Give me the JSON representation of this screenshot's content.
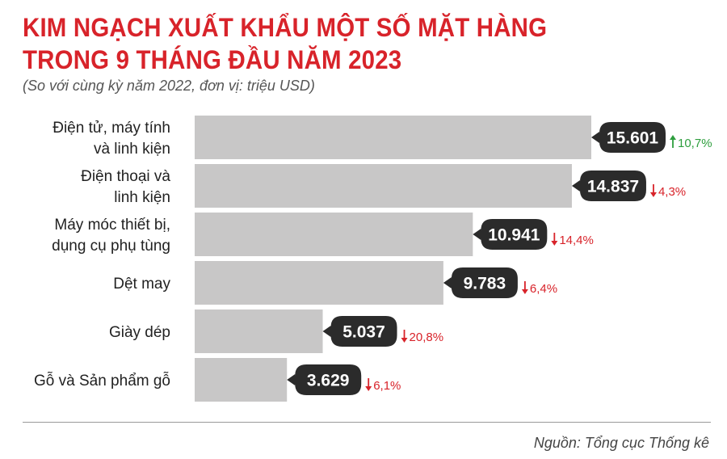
{
  "header": {
    "title_line1": "KIM NGẠCH XUẤT KHẨU MỘT SỐ MẶT HÀNG",
    "title_line2": "TRONG 9 THÁNG ĐẦU NĂM 2023",
    "subtitle": "(So với cùng kỳ năm 2022, đơn vị: triệu USD)"
  },
  "footer": {
    "source": "Nguồn: Tổng cục Thống kê"
  },
  "chart_data": {
    "type": "bar",
    "orientation": "horizontal",
    "categories": [
      [
        "Điện tử, máy tính",
        "và linh kiện"
      ],
      [
        "Điện thoại và",
        "linh kiện"
      ],
      [
        "Máy móc thiết bị,",
        "dụng cụ phụ tùng"
      ],
      [
        "Dệt may"
      ],
      [
        "Giày dép"
      ],
      [
        "Gỗ và Sản phẩm gỗ"
      ]
    ],
    "values": [
      15601,
      14837,
      10941,
      9783,
      5037,
      3629
    ],
    "value_labels": [
      "15.601",
      "14.837",
      "10.941",
      "9.783",
      "5.037",
      "3.629"
    ],
    "changes": [
      {
        "text": "10,7%",
        "direction": "up"
      },
      {
        "text": "4,3%",
        "direction": "down"
      },
      {
        "text": "14,4%",
        "direction": "down"
      },
      {
        "text": "6,4%",
        "direction": "down"
      },
      {
        "text": "20,8%",
        "direction": "down"
      },
      {
        "text": "6,1%",
        "direction": "down"
      }
    ],
    "colors": {
      "bar": "#c8c7c7",
      "value_box": "#2b2b2b",
      "up": "#2e9e3e",
      "down": "#d8232a",
      "title": "#d8232a"
    }
  }
}
